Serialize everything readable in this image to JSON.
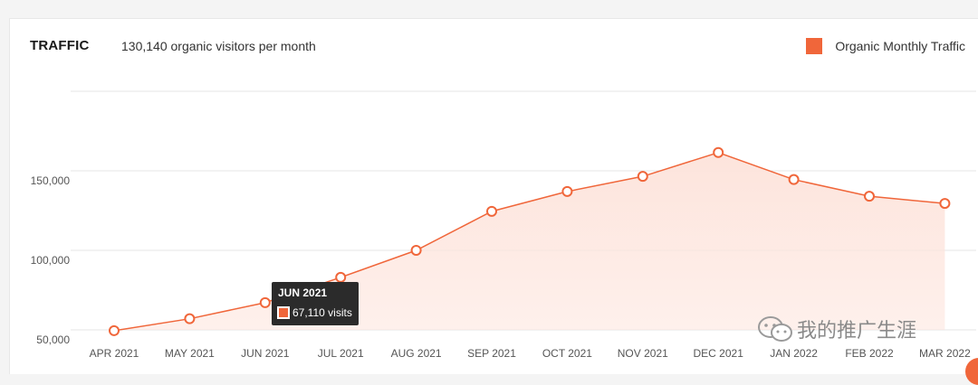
{
  "header": {
    "title": "TRAFFIC",
    "subtitle": "130,140 organic visitors per month"
  },
  "legend": {
    "label": "Organic Monthly Traffic",
    "color": "#f0663a"
  },
  "tooltip": {
    "title": "JUN 2021",
    "value_text": "67,110 visits"
  },
  "watermark": {
    "icon": "wechat-icon",
    "text": "我的推广生涯"
  },
  "colors": {
    "accent": "#f0663a",
    "fill": "#fde4dc",
    "grid": "#e6e6e6"
  },
  "chart_data": {
    "type": "area",
    "categories": [
      "APR 2021",
      "MAY 2021",
      "JUN 2021",
      "JUL 2021",
      "AUG 2021",
      "SEP 2021",
      "OCT 2021",
      "NOV 2021",
      "DEC 2021",
      "JAN 2022",
      "FEB 2022",
      "MAR 2022"
    ],
    "series": [
      {
        "name": "Organic Monthly Traffic",
        "values": [
          49500,
          57000,
          67110,
          83000,
          100000,
          124500,
          137000,
          146500,
          161500,
          144500,
          134000,
          129500
        ]
      }
    ],
    "yticks": [
      50000,
      100000,
      150000
    ],
    "ytick_labels": [
      "50,000",
      "100,000",
      "150,000"
    ],
    "ylim": [
      50000,
      200000
    ],
    "grid": true,
    "legend_position": "top-right"
  }
}
